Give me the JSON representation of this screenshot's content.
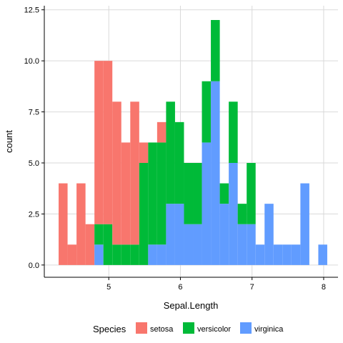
{
  "chart_data": {
    "type": "bar",
    "stacked": true,
    "title": "",
    "xlabel": "Sepal.Length",
    "ylabel": "count",
    "xlim": [
      4.1,
      8.2
    ],
    "ylim": [
      -0.6,
      12.7
    ],
    "x_ticks": [
      5,
      6,
      7,
      8
    ],
    "y_ticks": [
      0.0,
      2.5,
      5.0,
      7.5,
      10.0,
      12.5
    ],
    "y_tick_labels": [
      "0.0",
      "2.5",
      "5.0",
      "7.5",
      "10.0",
      "12.5"
    ],
    "grid": true,
    "legend_position": "bottom",
    "legend_title": "Species",
    "bin_width": 0.125,
    "bin_starts": [
      4.3,
      4.425,
      4.55,
      4.675,
      4.8,
      4.925,
      5.05,
      5.175,
      5.3,
      5.425,
      5.55,
      5.675,
      5.8,
      5.925,
      6.05,
      6.175,
      6.3,
      6.425,
      6.55,
      6.675,
      6.8,
      6.925,
      7.05,
      7.175,
      7.3,
      7.425,
      7.55,
      7.675,
      7.8,
      7.925
    ],
    "series": [
      {
        "name": "setosa",
        "color": "#F8766D",
        "values": [
          4,
          1,
          4,
          2,
          8,
          8,
          7,
          5,
          7,
          1,
          0,
          1,
          0,
          0,
          0,
          0,
          0,
          0,
          0,
          0,
          0,
          0,
          0,
          0,
          0,
          0,
          0,
          0,
          0,
          0
        ]
      },
      {
        "name": "versicolor",
        "color": "#00BA38",
        "values": [
          0,
          0,
          0,
          0,
          1,
          2,
          1,
          1,
          1,
          5,
          5,
          5,
          5,
          4,
          3,
          3,
          3,
          3,
          1,
          3,
          1,
          3,
          0,
          0,
          0,
          0,
          0,
          0,
          0,
          0
        ]
      },
      {
        "name": "virginica",
        "color": "#619CFF",
        "values": [
          0,
          0,
          0,
          0,
          1,
          0,
          0,
          0,
          0,
          0,
          1,
          1,
          3,
          3,
          2,
          2,
          6,
          9,
          3,
          5,
          2,
          2,
          1,
          3,
          1,
          1,
          1,
          4,
          0,
          1
        ]
      }
    ]
  }
}
